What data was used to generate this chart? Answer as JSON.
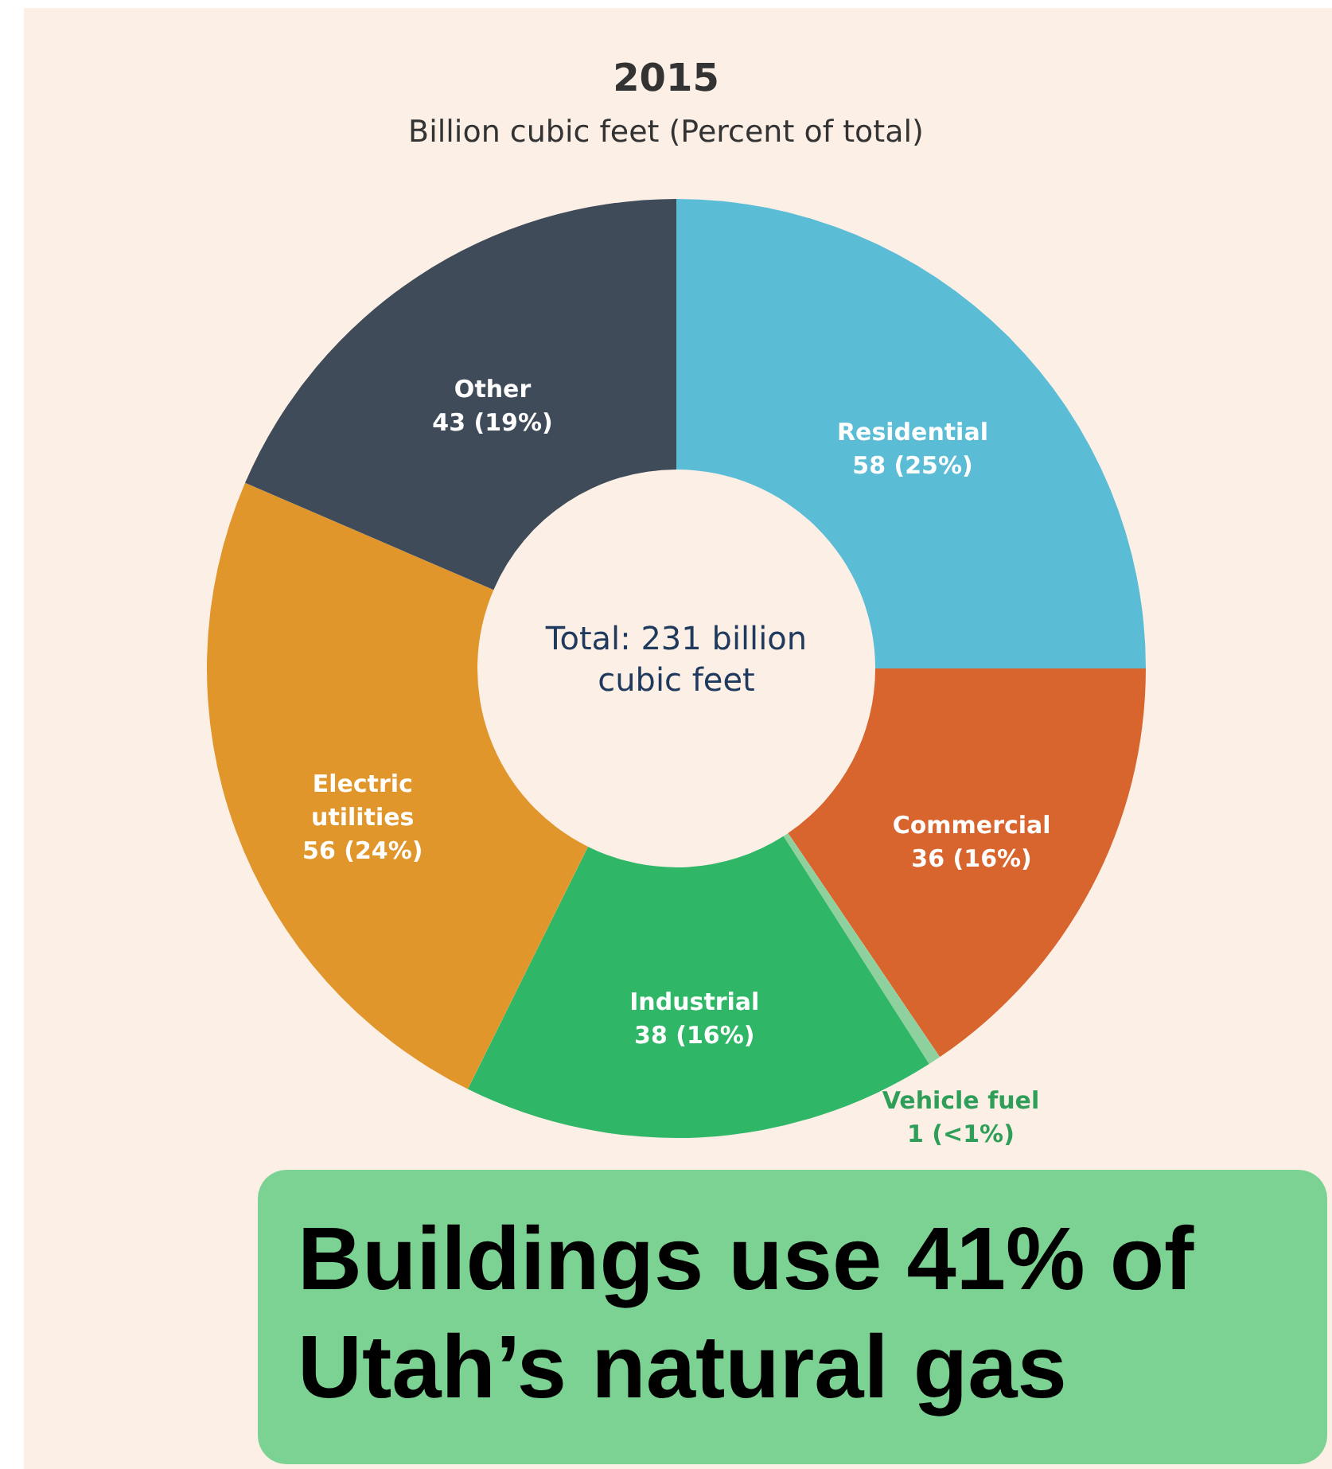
{
  "chart_data": {
    "type": "donut",
    "title": "2015",
    "subtitle": "Billion cubic feet (Percent of total)",
    "categories": [
      "Residential",
      "Commercial",
      "Vehicle fuel",
      "Industrial",
      "Electric utilities",
      "Other"
    ],
    "values": [
      58,
      36,
      1,
      38,
      56,
      43
    ],
    "colors": [
      "#5bbcd6",
      "#d9652e",
      "#8fd19e",
      "#2fb767",
      "#e0962a",
      "#3f4b58"
    ],
    "value_labels": [
      "58 (25%)",
      "36 (16%)",
      "1 (<1%)",
      "38 (16%)",
      "56 (24%)",
      "43 (19%)"
    ],
    "annotations": [
      "Total: 231 billion cubic feet",
      "Buildings use 41% of Utah’s natural gas"
    ]
  }
}
